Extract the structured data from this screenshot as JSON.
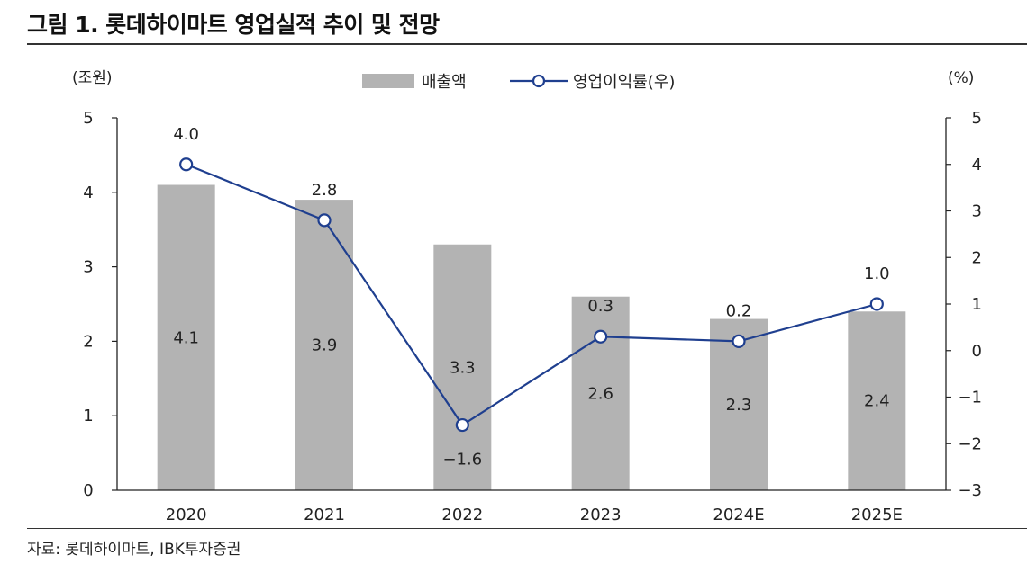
{
  "figure": {
    "title": "그림 1. 롯데하이마트 영업실적 추이 및 전망",
    "source": "자료: 롯데하이마트, IBK투자증권"
  },
  "chart_data": {
    "type": "bar+line",
    "categories": [
      "2020",
      "2021",
      "2022",
      "2023",
      "2024E",
      "2025E"
    ],
    "series": [
      {
        "name": "매출액",
        "kind": "bar",
        "axis": "left",
        "color": "#b3b3b3",
        "values": [
          4.1,
          3.9,
          3.3,
          2.6,
          2.3,
          2.4
        ],
        "labels": [
          "4.1",
          "3.9",
          "3.3",
          "2.6",
          "2.3",
          "2.4"
        ]
      },
      {
        "name": "영업이익률(우)",
        "kind": "line",
        "axis": "right",
        "color": "#1f3f8f",
        "values": [
          4.0,
          2.8,
          -1.6,
          0.3,
          0.2,
          1.0
        ],
        "labels": [
          "4.0",
          "2.8",
          "−1.6",
          "0.3",
          "0.2",
          "1.0"
        ]
      }
    ],
    "left_axis": {
      "unit": "(조원)",
      "ylim": [
        0,
        5
      ],
      "ticks": [
        0,
        1,
        2,
        3,
        4,
        5
      ],
      "tick_labels": [
        "0",
        "1",
        "2",
        "3",
        "4",
        "5"
      ]
    },
    "right_axis": {
      "unit": "(%)",
      "ylim": [
        -3,
        5
      ],
      "ticks": [
        -3,
        -2,
        -1,
        0,
        1,
        2,
        3,
        4,
        5
      ],
      "tick_labels": [
        "−3",
        "−2",
        "−1",
        "0",
        "1",
        "2",
        "3",
        "4",
        "5"
      ]
    },
    "legend": {
      "position": "top-center",
      "items": [
        "매출액",
        "영업이익률(우)"
      ]
    },
    "grid": false
  }
}
